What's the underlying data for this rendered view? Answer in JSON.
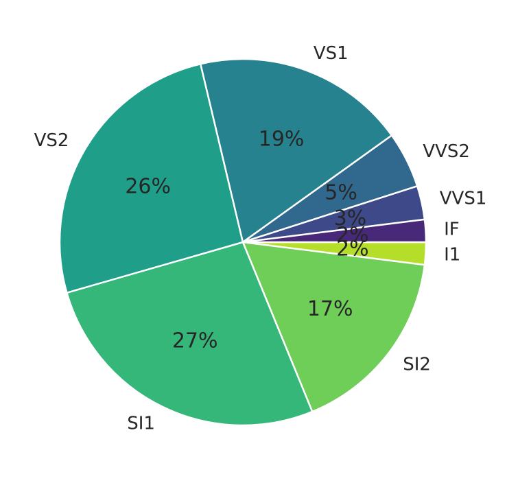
{
  "chart_data": {
    "type": "pie",
    "title": "",
    "categories": [
      "I1",
      "SI2",
      "SI1",
      "VS2",
      "VS1",
      "VVS2",
      "VVS1",
      "IF"
    ],
    "values": [
      2,
      17,
      27,
      26,
      19,
      5,
      3,
      2
    ],
    "percent_labels": [
      "2%",
      "17%",
      "27%",
      "26%",
      "19%",
      "5%",
      "3%",
      "2%"
    ],
    "colors": [
      "#b5de2b",
      "#6ece58",
      "#35b779",
      "#1f9e89",
      "#26828e",
      "#31688e",
      "#3e4989",
      "#482878"
    ],
    "start_angle_deg": 0,
    "direction": "clockwise",
    "legend": "none"
  }
}
